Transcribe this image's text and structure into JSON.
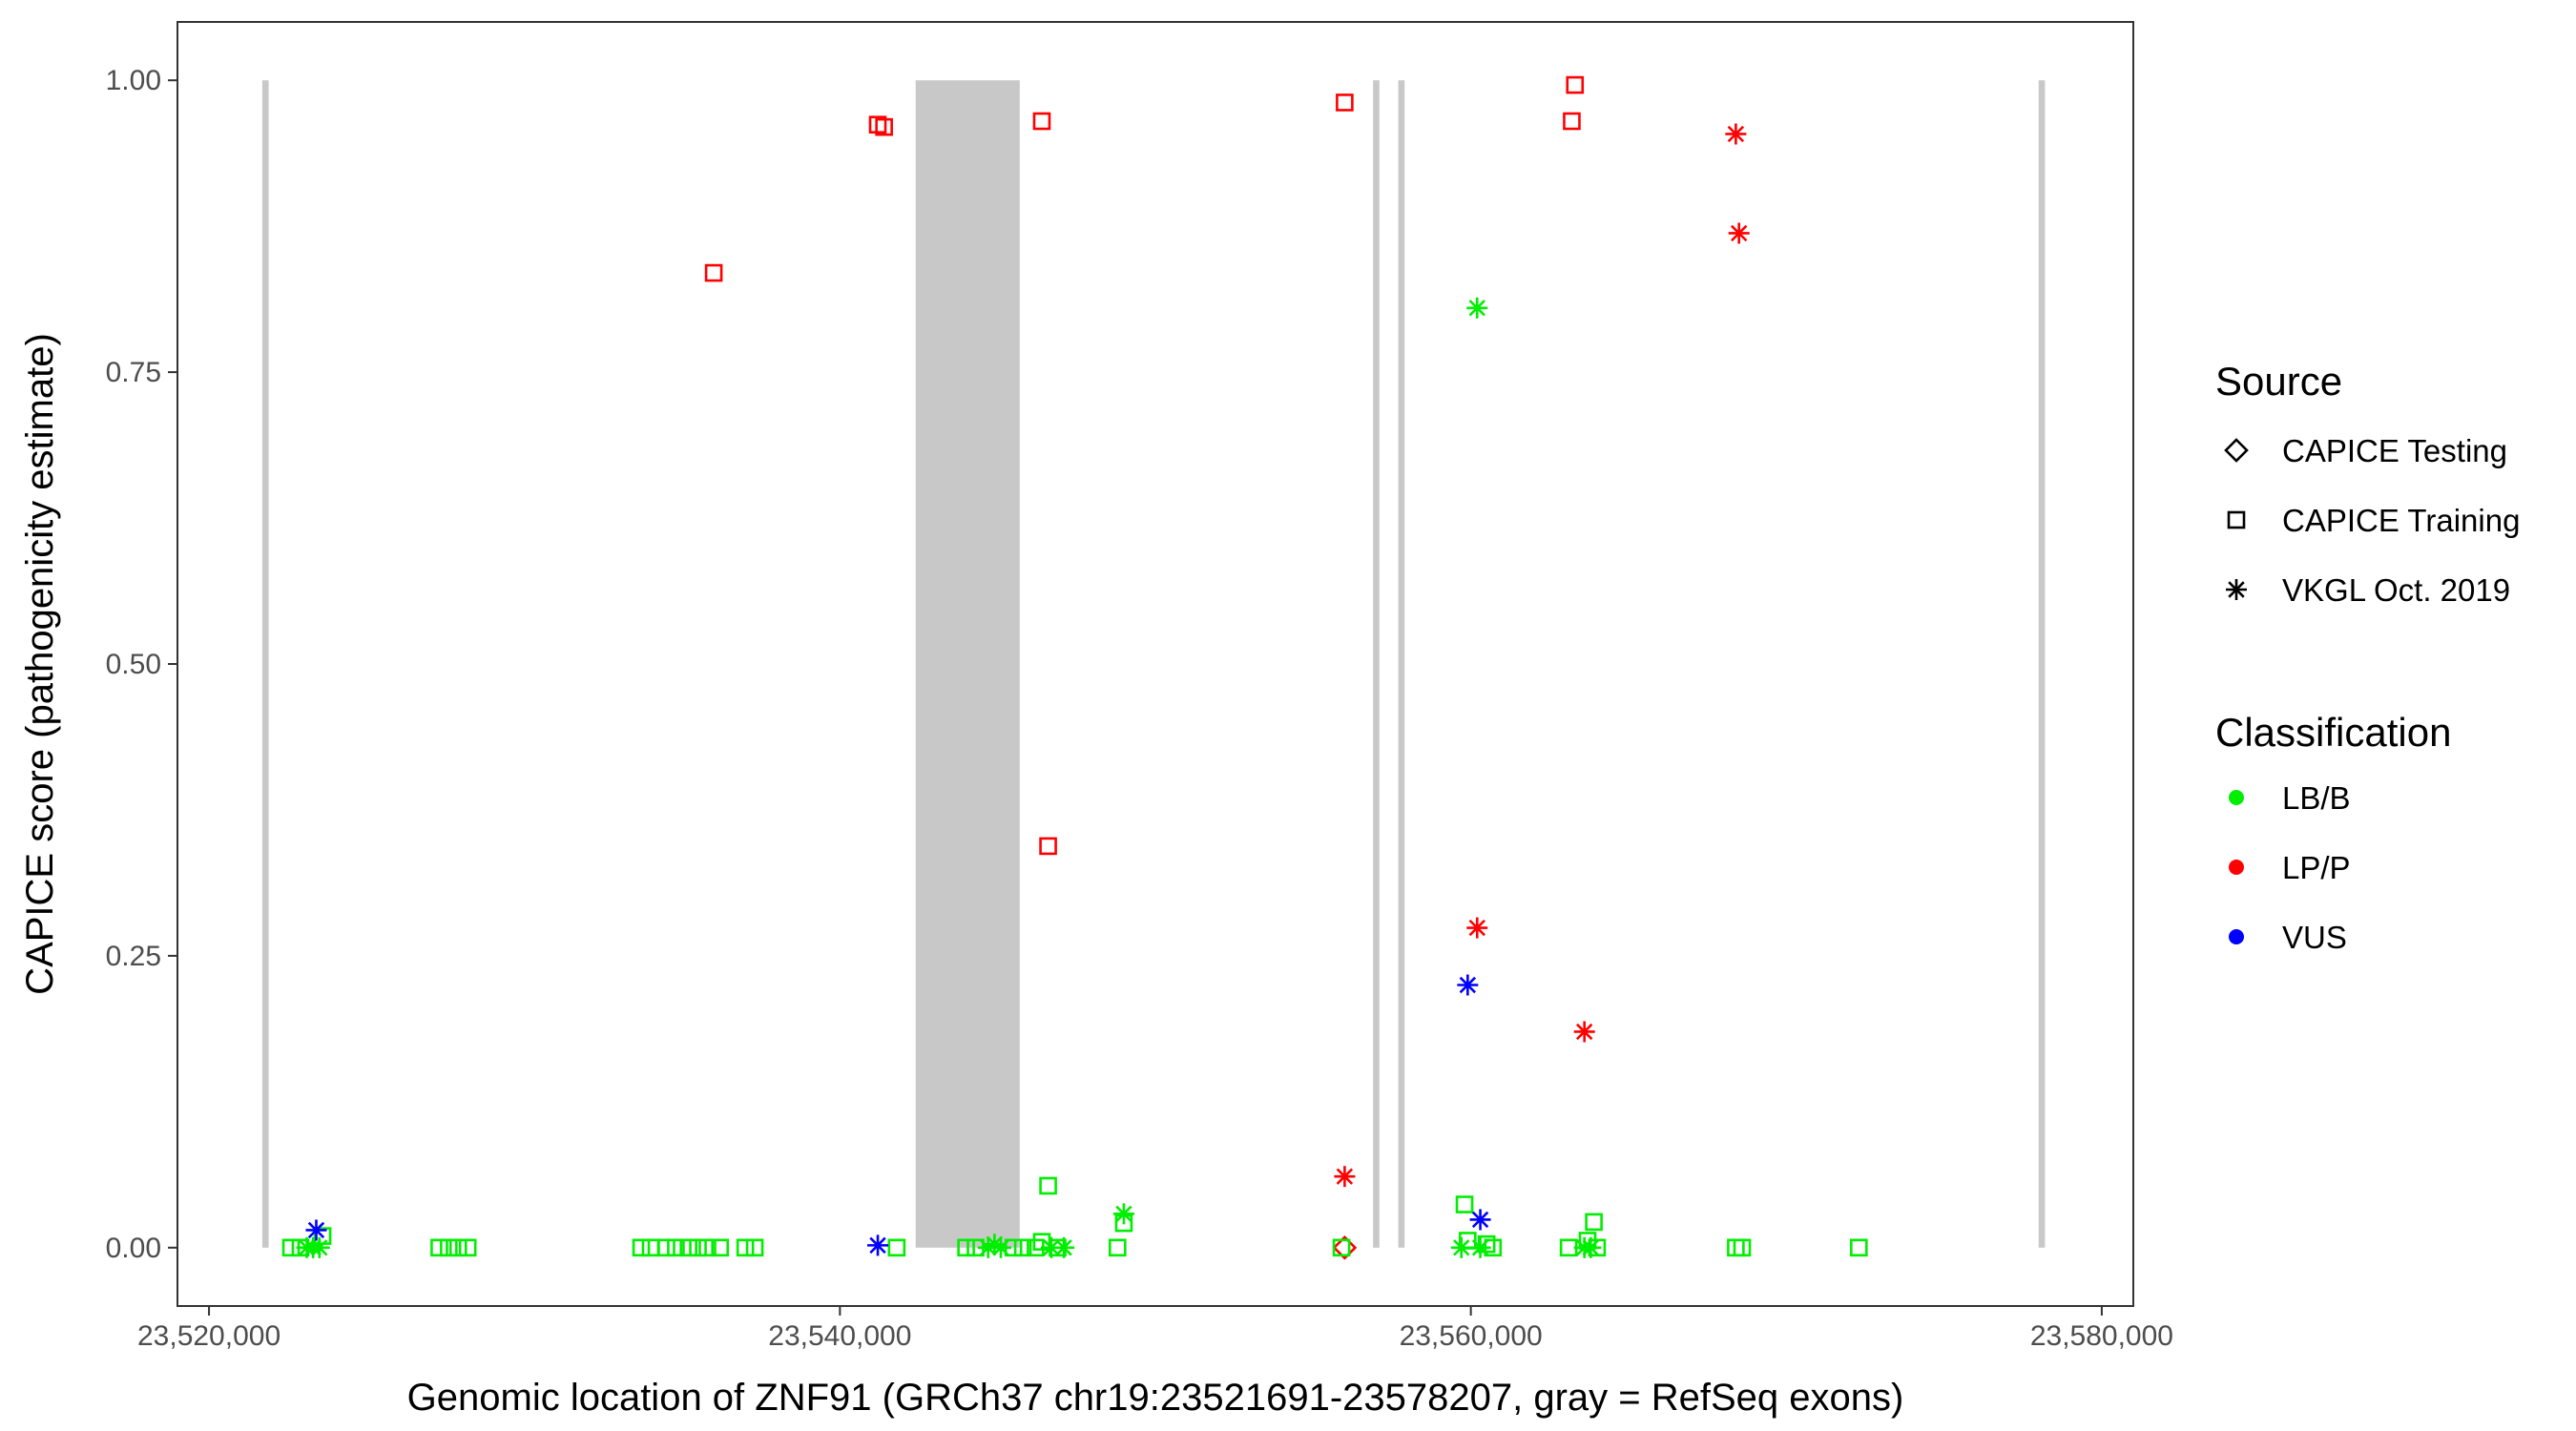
{
  "chart_data": {
    "type": "scatter",
    "title": "",
    "xlabel": "Genomic location of ZNF91 (GRCh37 chr19:23521691-23578207, gray = RefSeq exons)",
    "ylabel": "CAPICE score (pathogenicity estimate)",
    "xlim": [
      23519000,
      23581000
    ],
    "ylim": [
      -0.05,
      1.05
    ],
    "x_ticks": [
      23520000,
      23540000,
      23560000,
      23580000
    ],
    "x_tick_labels": [
      "23,520,000",
      "23,540,000",
      "23,560,000",
      "23,580,000"
    ],
    "y_ticks": [
      0,
      0.25,
      0.5,
      0.75,
      1.0
    ],
    "y_tick_labels": [
      "0.00",
      "0.25",
      "0.50",
      "0.75",
      "1.00"
    ],
    "grid": false,
    "legend_position": "right",
    "exons": [
      {
        "start": 23521690,
        "end": 23521890
      },
      {
        "start": 23542400,
        "end": 23545700
      },
      {
        "start": 23556900,
        "end": 23557100
      },
      {
        "start": 23557700,
        "end": 23557900
      },
      {
        "start": 23578000,
        "end": 23578200
      }
    ],
    "legend": {
      "source_title": "Source",
      "sources": [
        {
          "key": "testing",
          "label": "CAPICE Testing",
          "shape": "diamond"
        },
        {
          "key": "training",
          "label": "CAPICE Training",
          "shape": "square"
        },
        {
          "key": "vkgl",
          "label": "VKGL Oct. 2019",
          "shape": "asterisk"
        }
      ],
      "class_title": "Classification",
      "classes": [
        {
          "key": "LB/B",
          "label": "LB/B",
          "color": "#00ee00"
        },
        {
          "key": "LP/P",
          "label": "LP/P",
          "color": "#ff0000"
        },
        {
          "key": "VUS",
          "label": "VUS",
          "color": "#0000ff"
        }
      ]
    },
    "points": [
      {
        "x": 23536000,
        "y": 0.835,
        "source": "training",
        "cls": "LP/P"
      },
      {
        "x": 23541200,
        "y": 0.962,
        "source": "training",
        "cls": "LP/P"
      },
      {
        "x": 23541400,
        "y": 0.96,
        "source": "training",
        "cls": "LP/P"
      },
      {
        "x": 23546400,
        "y": 0.965,
        "source": "training",
        "cls": "LP/P"
      },
      {
        "x": 23546600,
        "y": 0.344,
        "source": "training",
        "cls": "LP/P"
      },
      {
        "x": 23556000,
        "y": 0.981,
        "source": "training",
        "cls": "LP/P"
      },
      {
        "x": 23563300,
        "y": 0.996,
        "source": "training",
        "cls": "LP/P"
      },
      {
        "x": 23563200,
        "y": 0.965,
        "source": "training",
        "cls": "LP/P"
      },
      {
        "x": 23568400,
        "y": 0.954,
        "source": "vkgl",
        "cls": "LP/P"
      },
      {
        "x": 23568500,
        "y": 0.869,
        "source": "vkgl",
        "cls": "LP/P"
      },
      {
        "x": 23560200,
        "y": 0.274,
        "source": "vkgl",
        "cls": "LP/P"
      },
      {
        "x": 23563600,
        "y": 0.185,
        "source": "vkgl",
        "cls": "LP/P"
      },
      {
        "x": 23556000,
        "y": 0.061,
        "source": "vkgl",
        "cls": "LP/P"
      },
      {
        "x": 23556000,
        "y": 0.0,
        "source": "testing",
        "cls": "LP/P"
      },
      {
        "x": 23560200,
        "y": 0.805,
        "source": "vkgl",
        "cls": "LB/B"
      },
      {
        "x": 23546600,
        "y": 0.053,
        "source": "training",
        "cls": "LB/B"
      },
      {
        "x": 23549000,
        "y": 0.029,
        "source": "vkgl",
        "cls": "LB/B"
      },
      {
        "x": 23549000,
        "y": 0.021,
        "source": "training",
        "cls": "LB/B"
      },
      {
        "x": 23559800,
        "y": 0.037,
        "source": "training",
        "cls": "LB/B"
      },
      {
        "x": 23563900,
        "y": 0.022,
        "source": "training",
        "cls": "LB/B"
      },
      {
        "x": 23523600,
        "y": 0.01,
        "source": "training",
        "cls": "LB/B"
      },
      {
        "x": 23522600,
        "y": 0.0,
        "source": "training",
        "cls": "LB/B"
      },
      {
        "x": 23522900,
        "y": 0.0,
        "source": "training",
        "cls": "LB/B"
      },
      {
        "x": 23523100,
        "y": 0.0,
        "source": "vkgl",
        "cls": "LB/B"
      },
      {
        "x": 23523300,
        "y": 0.0,
        "source": "vkgl",
        "cls": "LB/B"
      },
      {
        "x": 23523500,
        "y": 0.0,
        "source": "vkgl",
        "cls": "LB/B"
      },
      {
        "x": 23527300,
        "y": 0.0,
        "source": "training",
        "cls": "LB/B"
      },
      {
        "x": 23527600,
        "y": 0.0,
        "source": "training",
        "cls": "LB/B"
      },
      {
        "x": 23527900,
        "y": 0.0,
        "source": "training",
        "cls": "LB/B"
      },
      {
        "x": 23528200,
        "y": 0.0,
        "source": "training",
        "cls": "LB/B"
      },
      {
        "x": 23533700,
        "y": 0.0,
        "source": "training",
        "cls": "LB/B"
      },
      {
        "x": 23534000,
        "y": 0.0,
        "source": "training",
        "cls": "LB/B"
      },
      {
        "x": 23534500,
        "y": 0.0,
        "source": "training",
        "cls": "LB/B"
      },
      {
        "x": 23534800,
        "y": 0.0,
        "source": "training",
        "cls": "LB/B"
      },
      {
        "x": 23535200,
        "y": 0.0,
        "source": "training",
        "cls": "LB/B"
      },
      {
        "x": 23535500,
        "y": 0.0,
        "source": "training",
        "cls": "LB/B"
      },
      {
        "x": 23535800,
        "y": 0.0,
        "source": "training",
        "cls": "LB/B"
      },
      {
        "x": 23536200,
        "y": 0.0,
        "source": "training",
        "cls": "LB/B"
      },
      {
        "x": 23537000,
        "y": 0.0,
        "source": "training",
        "cls": "LB/B"
      },
      {
        "x": 23537300,
        "y": 0.0,
        "source": "training",
        "cls": "LB/B"
      },
      {
        "x": 23541800,
        "y": 0.0,
        "source": "training",
        "cls": "LB/B"
      },
      {
        "x": 23544000,
        "y": 0.0,
        "source": "training",
        "cls": "LB/B"
      },
      {
        "x": 23544300,
        "y": 0.0,
        "source": "training",
        "cls": "LB/B"
      },
      {
        "x": 23544700,
        "y": 0.0,
        "source": "vkgl",
        "cls": "LB/B"
      },
      {
        "x": 23544900,
        "y": 0.003,
        "source": "vkgl",
        "cls": "LB/B"
      },
      {
        "x": 23545100,
        "y": 0.0,
        "source": "vkgl",
        "cls": "LB/B"
      },
      {
        "x": 23545500,
        "y": 0.0,
        "source": "training",
        "cls": "LB/B"
      },
      {
        "x": 23545800,
        "y": 0.0,
        "source": "training",
        "cls": "LB/B"
      },
      {
        "x": 23546200,
        "y": 0.0,
        "source": "training",
        "cls": "LB/B"
      },
      {
        "x": 23546400,
        "y": 0.005,
        "source": "training",
        "cls": "LB/B"
      },
      {
        "x": 23546700,
        "y": 0.0,
        "source": "vkgl",
        "cls": "LB/B"
      },
      {
        "x": 23546900,
        "y": 0.0,
        "source": "training",
        "cls": "LB/B"
      },
      {
        "x": 23547100,
        "y": 0.0,
        "source": "vkgl",
        "cls": "LB/B"
      },
      {
        "x": 23548800,
        "y": 0.0,
        "source": "training",
        "cls": "LB/B"
      },
      {
        "x": 23555900,
        "y": 0.0,
        "source": "training",
        "cls": "LB/B"
      },
      {
        "x": 23559700,
        "y": 0.0,
        "source": "vkgl",
        "cls": "LB/B"
      },
      {
        "x": 23559900,
        "y": 0.006,
        "source": "training",
        "cls": "LB/B"
      },
      {
        "x": 23560300,
        "y": 0.0,
        "source": "vkgl",
        "cls": "LB/B"
      },
      {
        "x": 23560500,
        "y": 0.003,
        "source": "training",
        "cls": "LB/B"
      },
      {
        "x": 23560700,
        "y": 0.0,
        "source": "training",
        "cls": "LB/B"
      },
      {
        "x": 23563100,
        "y": 0.0,
        "source": "training",
        "cls": "LB/B"
      },
      {
        "x": 23563600,
        "y": 0.0,
        "source": "vkgl",
        "cls": "LB/B"
      },
      {
        "x": 23563700,
        "y": 0.006,
        "source": "training",
        "cls": "LB/B"
      },
      {
        "x": 23563800,
        "y": 0.0,
        "source": "vkgl",
        "cls": "LB/B"
      },
      {
        "x": 23564000,
        "y": 0.0,
        "source": "training",
        "cls": "LB/B"
      },
      {
        "x": 23568400,
        "y": 0.0,
        "source": "training",
        "cls": "LB/B"
      },
      {
        "x": 23568600,
        "y": 0.0,
        "source": "training",
        "cls": "LB/B"
      },
      {
        "x": 23572300,
        "y": 0.0,
        "source": "training",
        "cls": "LB/B"
      },
      {
        "x": 23523400,
        "y": 0.015,
        "source": "vkgl",
        "cls": "VUS"
      },
      {
        "x": 23541200,
        "y": 0.002,
        "source": "vkgl",
        "cls": "VUS"
      },
      {
        "x": 23559900,
        "y": 0.225,
        "source": "vkgl",
        "cls": "VUS"
      },
      {
        "x": 23560300,
        "y": 0.024,
        "source": "vkgl",
        "cls": "VUS"
      }
    ]
  }
}
